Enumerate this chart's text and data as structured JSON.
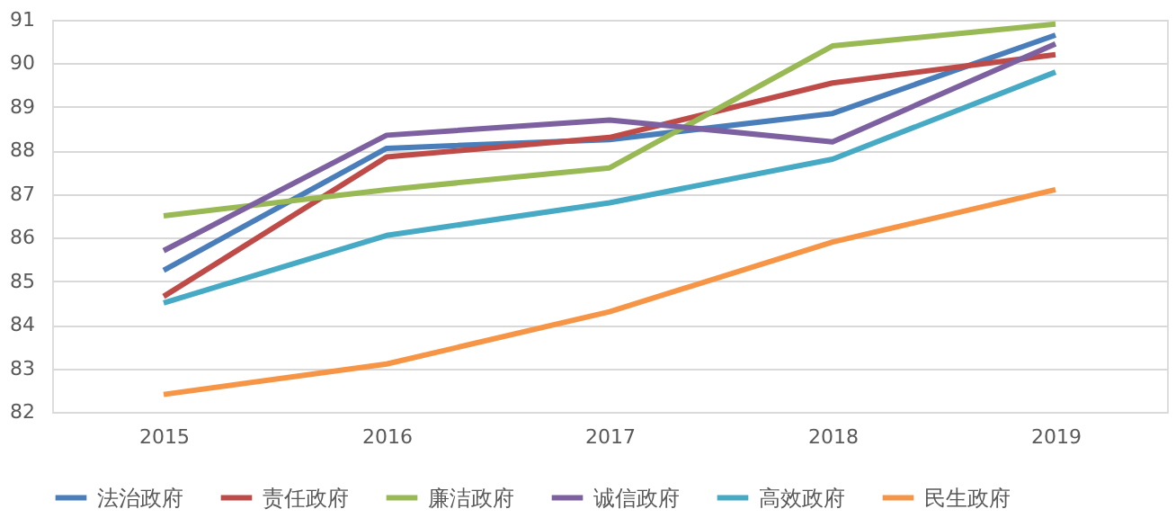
{
  "chart_data": {
    "type": "line",
    "categories": [
      "2015",
      "2016",
      "2017",
      "2018",
      "2019"
    ],
    "series": [
      {
        "name": "法治政府",
        "color": "#4a7ebb",
        "values": [
          85.25,
          88.05,
          88.25,
          88.85,
          90.65
        ]
      },
      {
        "name": "责任政府",
        "color": "#be4b48",
        "values": [
          84.65,
          87.85,
          88.3,
          89.55,
          90.2
        ]
      },
      {
        "name": "廉洁政府",
        "color": "#98b954",
        "values": [
          86.5,
          87.1,
          87.6,
          90.4,
          90.9
        ]
      },
      {
        "name": "诚信政府",
        "color": "#7d60a0",
        "values": [
          85.7,
          88.35,
          88.7,
          88.2,
          90.45
        ]
      },
      {
        "name": "高效政府",
        "color": "#46aac5",
        "values": [
          84.5,
          86.05,
          86.8,
          87.8,
          89.8
        ]
      },
      {
        "name": "民生政府",
        "color": "#f69546",
        "values": [
          82.4,
          83.1,
          84.3,
          85.9,
          87.1
        ]
      }
    ],
    "ylim": [
      82,
      91
    ],
    "yticks": [
      82,
      83,
      84,
      85,
      86,
      87,
      88,
      89,
      90,
      91
    ],
    "grid": "y",
    "legend": "bottom",
    "marker": "none",
    "line_style": "solid"
  }
}
